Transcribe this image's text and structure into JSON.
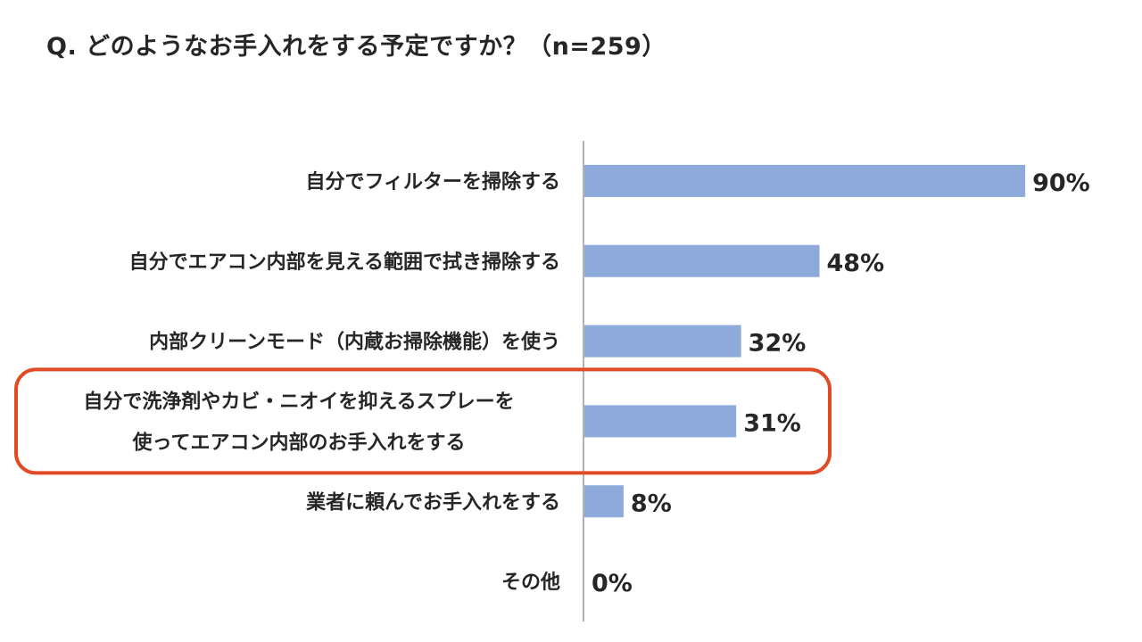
{
  "title": "Q. どのようなお手入れをする予定ですか？（n=259）",
  "colors": {
    "bar": "#8eaadb",
    "axis": "#7f7f7f",
    "highlight": "#e04b25",
    "text": "#262626"
  },
  "chart_data": {
    "type": "bar",
    "orientation": "horizontal",
    "categories": [
      [
        "自分でフィルターを掃除する"
      ],
      [
        "自分でエアコン内部を見える範囲で拭き掃除する"
      ],
      [
        "内部クリーンモード（内蔵お掃除機能）を使う"
      ],
      [
        "自分で洗浄剤やカビ・ニオイを抑えるスプレーを",
        "使ってエアコン内部のお手入れをする"
      ],
      [
        "業者に頼んでお手入れをする"
      ],
      [
        "その他"
      ]
    ],
    "values": [
      90,
      48,
      32,
      31,
      8,
      0
    ],
    "value_labels": [
      "90%",
      "48%",
      "32%",
      "31%",
      "8%",
      "0%"
    ],
    "unit": "%",
    "xlim": [
      0,
      100
    ],
    "grid": false,
    "legend": "none",
    "highlighted_index": 3
  }
}
